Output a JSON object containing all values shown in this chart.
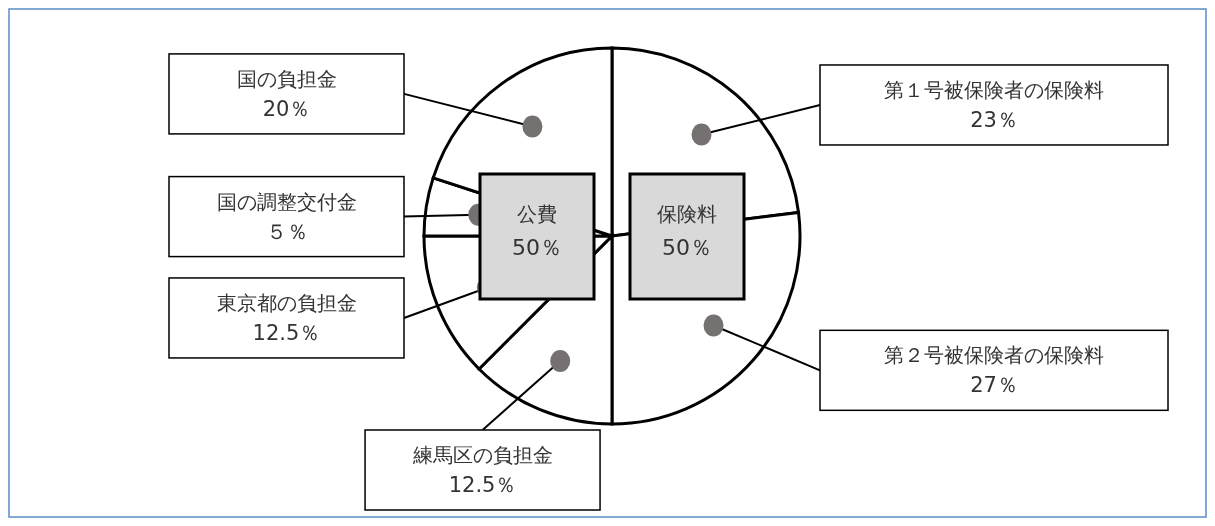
{
  "chart_data": {
    "type": "pie",
    "categories": [
      "第１号被保険者の保険料",
      "第２号被保険者の保険料",
      "練馬区の負担金",
      "東京都の負担金",
      "国の調整交付金",
      "国の負担金"
    ],
    "values": [
      23,
      27,
      12.5,
      12.5,
      5,
      20
    ],
    "colors": [
      "#ffffff",
      "#ffffff",
      "#ffffff",
      "#ffffff",
      "#ffffff",
      "#ffffff"
    ],
    "value_labels": [
      "23％",
      "27％",
      "12.5％",
      "12.5％",
      "５％",
      "20％"
    ],
    "annotations": [
      "公費 50％",
      "保険料 50％"
    ]
  }
}
